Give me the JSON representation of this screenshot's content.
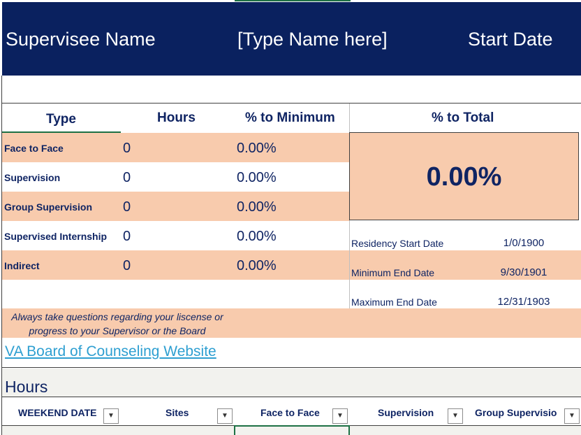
{
  "banner": {
    "label": "Supervisee Name",
    "name_value": "[Type Name here]",
    "start_label": "Start Date"
  },
  "summary": {
    "headers": {
      "type": "Type",
      "hours": "Hours",
      "pct_min": "% to Minimum",
      "pct_total": "% to Total"
    },
    "rows": [
      {
        "type": "Face to Face",
        "hours": "0",
        "pct": "0.00%"
      },
      {
        "type": "Supervision",
        "hours": "0",
        "pct": "0.00%"
      },
      {
        "type": "Group Supervision",
        "hours": "0",
        "pct": "0.00%"
      },
      {
        "type": "Supervised Internship",
        "hours": "0",
        "pct": "0.00%"
      },
      {
        "type": "Indirect",
        "hours": "0",
        "pct": "0.00%"
      }
    ],
    "total_pct": "0.00%"
  },
  "dates": [
    {
      "label": "Residency Start Date",
      "value": "1/0/1900"
    },
    {
      "label": "Minimum End Date",
      "value": "9/30/1901"
    },
    {
      "label": "Maximum End Date",
      "value": "12/31/1903"
    }
  ],
  "note": "Always take questions regarding your liscense or progress to your Supervisor or the Board",
  "link": "VA Board of Counseling Website",
  "hours_table": {
    "title": "Hours",
    "columns": [
      "WEEKEND DATE",
      "Sites",
      "Face to Face",
      "Supervision",
      "Group Supervisio"
    ]
  },
  "colors": {
    "navy": "#0a215f",
    "peach": "#f8cbad",
    "link": "#2e9fd1",
    "selection": "#1e7145"
  },
  "icons": {
    "dropdown": "chevron-down-icon"
  }
}
